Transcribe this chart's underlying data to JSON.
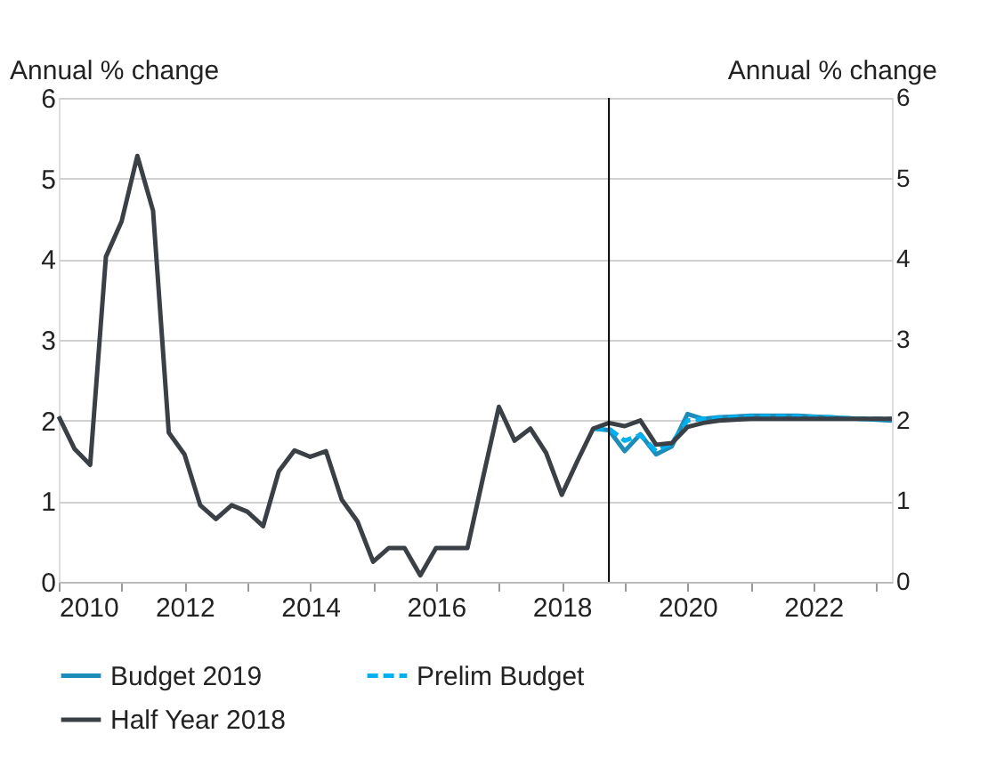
{
  "chart_data": {
    "type": "line",
    "ylabel": "Annual % change",
    "y2label": "Annual % change",
    "xlim": [
      2010,
      2023.25
    ],
    "xticks": [
      2010,
      {
        "value": 2011,
        "label": null
      },
      2012,
      {
        "value": 2013,
        "label": null
      },
      2014,
      {
        "value": 2015,
        "label": null
      },
      2016,
      {
        "value": 2017,
        "label": null
      },
      2018,
      {
        "value": 2019,
        "label": null
      },
      2020,
      {
        "value": 2021,
        "label": null
      },
      2022,
      {
        "value": 2023,
        "label": null
      }
    ],
    "ylim": [
      0,
      6
    ],
    "yticks": [
      0,
      1,
      2,
      3,
      4,
      5,
      6
    ],
    "y2lim": [
      0,
      6
    ],
    "y2ticks": [
      0,
      1,
      2,
      3,
      4,
      5,
      6
    ],
    "grid": "y",
    "legend": "bottom",
    "marker": "none",
    "ref_lines": [
      {
        "axis": "x",
        "value": 2018.75,
        "color": "#000000"
      }
    ],
    "series": [
      {
        "name": "Budget 2019",
        "color": "#1e8cb9",
        "line_style": "solid",
        "x": [
          2018.5,
          2018.75,
          2019.0,
          2019.25,
          2019.5,
          2019.75,
          2020.0,
          2020.25,
          2020.5,
          2020.75,
          2021.0,
          2021.25,
          2021.5,
          2021.75,
          2022.0,
          2022.25,
          2022.5,
          2022.75,
          2023.0,
          2023.25
        ],
        "values": [
          1.9,
          1.88,
          1.62,
          1.83,
          1.58,
          1.68,
          2.08,
          2.02,
          2.04,
          2.05,
          2.06,
          2.06,
          2.06,
          2.06,
          2.05,
          2.04,
          2.03,
          2.02,
          2.01,
          2.0
        ]
      },
      {
        "name": "Prelim Budget",
        "color": "#00b0f0",
        "line_style": "dashed",
        "x": [
          2018.5,
          2018.75,
          2019.0,
          2019.25,
          2019.5,
          2019.75,
          2020.0,
          2020.25,
          2020.5,
          2020.75,
          2021.0,
          2021.25,
          2021.5,
          2021.75,
          2022.0,
          2022.25,
          2022.5,
          2022.75,
          2023.0,
          2023.25
        ],
        "values": [
          1.9,
          1.9,
          1.75,
          1.82,
          1.62,
          1.72,
          2.0,
          2.02,
          2.03,
          2.04,
          2.05,
          2.05,
          2.05,
          2.05,
          2.04,
          2.04,
          2.03,
          2.02,
          2.02,
          2.02
        ]
      },
      {
        "name": "Half Year 2018",
        "color": "#3a4045",
        "line_style": "solid",
        "x": [
          2010.0,
          2010.25,
          2010.5,
          2010.75,
          2011.0,
          2011.25,
          2011.5,
          2011.75,
          2012.0,
          2012.25,
          2012.5,
          2012.75,
          2013.0,
          2013.25,
          2013.5,
          2013.75,
          2014.0,
          2014.25,
          2014.5,
          2014.75,
          2015.0,
          2015.25,
          2015.5,
          2015.75,
          2016.0,
          2016.25,
          2016.5,
          2016.75,
          2017.0,
          2017.25,
          2017.5,
          2017.75,
          2018.0,
          2018.25,
          2018.5,
          2018.75,
          2019.0,
          2019.25,
          2019.5,
          2019.75,
          2020.0,
          2020.25,
          2020.5,
          2020.75,
          2021.0,
          2021.25,
          2021.5,
          2021.75,
          2022.0,
          2022.25,
          2022.5,
          2022.75,
          2023.0,
          2023.25
        ],
        "values": [
          2.05,
          1.65,
          1.45,
          4.03,
          4.47,
          5.28,
          4.6,
          1.85,
          1.58,
          0.95,
          0.78,
          0.95,
          0.87,
          0.69,
          1.37,
          1.63,
          1.55,
          1.62,
          1.02,
          0.75,
          0.25,
          0.42,
          0.42,
          0.08,
          0.42,
          0.42,
          0.42,
          1.3,
          2.17,
          1.75,
          1.9,
          1.6,
          1.08,
          1.5,
          1.9,
          1.97,
          1.93,
          2.0,
          1.7,
          1.72,
          1.92,
          1.97,
          2.0,
          2.01,
          2.02,
          2.02,
          2.02,
          2.02,
          2.02,
          2.02,
          2.02,
          2.02,
          2.02,
          2.02
        ]
      }
    ]
  }
}
